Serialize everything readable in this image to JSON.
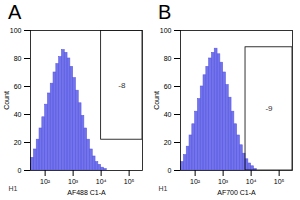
{
  "chart_data": [
    {
      "type": "histogram",
      "title": "A",
      "xlabel": "AF488 C1-A",
      "ylabel": "Count",
      "bins": [
        20,
        25.1,
        31.6,
        39.8,
        50.1,
        63.1,
        79.4,
        100,
        125.9,
        158.5,
        199.5,
        251.2,
        316.2,
        398.1,
        501.2,
        631,
        794.3,
        1000,
        1258.9,
        1584.9,
        1995.3,
        2511.9,
        3162.3,
        3981.1,
        5011.9,
        6309.6,
        7943.3,
        10000,
        12589,
        15849,
        19953
      ],
      "values": [
        2,
        5,
        9,
        15,
        22,
        30,
        38,
        47,
        55,
        62,
        70,
        76,
        81,
        86,
        84,
        80,
        74,
        66,
        57,
        48,
        39,
        30,
        22,
        15,
        10,
        6,
        4,
        2,
        1,
        0
      ],
      "color": "#5b5be6",
      "log": "x",
      "xlim": [
        30,
        300000
      ],
      "xticks": [
        {
          "value": 100,
          "label": "10²"
        },
        {
          "value": 1000,
          "label": "10³"
        },
        {
          "value": 10000,
          "label": "10⁴"
        },
        {
          "value": 100000,
          "label": "10⁵"
        }
      ],
      "ylim": [
        0,
        100
      ],
      "yticks": [
        0,
        20,
        40,
        60,
        80,
        100
      ],
      "gate": {
        "x": [
          10000,
          300000
        ],
        "y": [
          22,
          100
        ],
        "label": "-8"
      },
      "annotations": [
        "H1"
      ]
    },
    {
      "type": "histogram",
      "title": "B",
      "xlabel": "AF700 C1-A",
      "ylabel": "Count",
      "bins": [
        20,
        25.1,
        31.6,
        39.8,
        50.1,
        63.1,
        79.4,
        100,
        125.9,
        158.5,
        199.5,
        251.2,
        316.2,
        398.1,
        501.2,
        631,
        794.3,
        1000,
        1258.9,
        1584.9,
        1995.3,
        2511.9,
        3162.3,
        3981.1,
        5011.9,
        6309.6,
        7943.3,
        10000,
        12589,
        15849,
        19953
      ],
      "values": [
        1,
        3,
        6,
        11,
        17,
        25,
        33,
        42,
        51,
        60,
        68,
        74,
        80,
        84,
        87,
        83,
        77,
        70,
        61,
        52,
        42,
        33,
        25,
        18,
        12,
        8,
        5,
        3,
        1,
        0
      ],
      "color": "#5b5be6",
      "log": "x",
      "xlim": [
        30,
        300000
      ],
      "xticks": [
        {
          "value": 100,
          "label": "10²"
        },
        {
          "value": 1000,
          "label": "10³"
        },
        {
          "value": 10000,
          "label": "10⁴"
        },
        {
          "value": 100000,
          "label": "10⁵"
        }
      ],
      "ylim": [
        0,
        100
      ],
      "yticks": [
        0,
        20,
        40,
        60,
        80,
        100
      ],
      "gate": {
        "x": [
          6300,
          300000
        ],
        "y": [
          0,
          88
        ],
        "label": "-9"
      },
      "annotations": [
        "H1"
      ]
    }
  ]
}
